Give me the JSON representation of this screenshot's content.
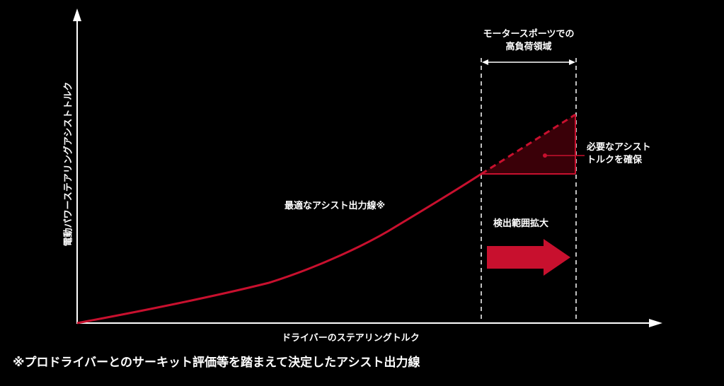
{
  "labels": {
    "y_axis": "電動パワーステアリングアシストトルク",
    "x_axis": "ドライバーのステアリングトルク",
    "curve": "最適なアシスト出力線※",
    "zone_line1": "モータースポーツでの",
    "zone_line2": "高負荷領域",
    "assist_line1": "必要なアシスト",
    "assist_line2": "トルクを確保",
    "expand": "検出範囲拡大",
    "footnote": "※プロドライバーとのサーキット評価等を踏まえて決定したアシスト出力線"
  },
  "colors": {
    "background": "#000000",
    "curve": "#c8102e",
    "region_fill": "#3a0008",
    "arrow": "#c8102e",
    "text": "#ffffff"
  }
}
